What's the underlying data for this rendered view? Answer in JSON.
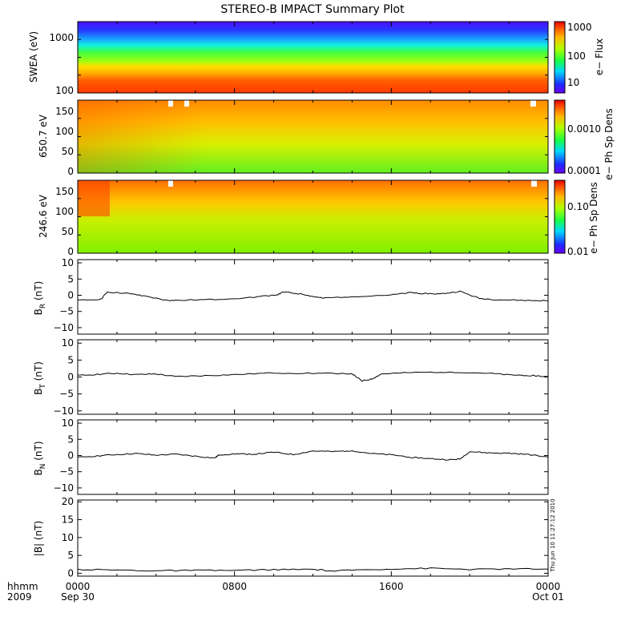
{
  "chart_data": {
    "type": "multi-panel time series",
    "title": "STEREO-B IMPACT Summary Plot",
    "colors": {
      "background": "#ffffff",
      "axis": "#000000",
      "trace": "#000000"
    },
    "x_axis": {
      "tick_labels": [
        "0000",
        "0800",
        "1600",
        "0000"
      ],
      "date_labels": [
        "Sep 30",
        "",
        "",
        "Oct 01"
      ],
      "corner_top": "hhmm",
      "corner_bottom": "2009",
      "range_hours": [
        0,
        24
      ]
    },
    "timestamp": "Thu Jun 10 11:27:12 2010",
    "panels": [
      {
        "id": "swea",
        "type": "heatmap",
        "ylabel": "SWEA (eV)",
        "yscale": "log",
        "ylim": [
          90,
          1800
        ],
        "yticks": [
          "1000",
          "100"
        ],
        "colorbar": {
          "label": "e− Flux",
          "ticks": [
            "1000",
            "100",
            "10"
          ]
        }
      },
      {
        "id": "pad_650",
        "type": "heatmap",
        "ylabel": "650.7 eV",
        "ylim": [
          0,
          180
        ],
        "yticks": [
          "150",
          "100",
          "50",
          "0"
        ],
        "colorbar": {
          "label": "e− Ph Sp Dens",
          "ticks": [
            "0.0010",
            "0.0001"
          ]
        }
      },
      {
        "id": "pad_246",
        "type": "heatmap",
        "ylabel": "246.6 eV",
        "ylim": [
          0,
          180
        ],
        "yticks": [
          "150",
          "100",
          "50",
          "0"
        ],
        "colorbar": {
          "label": "e− Ph Sp Dens",
          "ticks": [
            "0.10",
            "0.01"
          ]
        }
      },
      {
        "id": "br",
        "type": "line",
        "ylabel_main": "B",
        "ylabel_sub": "R",
        "ylabel_unit": " (nT)",
        "ylim": [
          -12,
          11
        ],
        "yticks": [
          "10",
          "5",
          "0",
          "−5",
          "−10"
        ],
        "x": [
          0,
          1.2,
          1.5,
          2.5,
          3.0,
          3.5,
          4.5,
          5.0,
          7.0,
          9.0,
          10.2,
          10.5,
          11.5,
          12.0,
          12.5,
          14.0,
          16.0,
          17.0,
          17.5,
          18.5,
          19.5,
          20.5,
          21.5,
          23.0,
          24.0
        ],
        "values": [
          -1.6,
          -1.2,
          1.0,
          0.6,
          0.2,
          -0.4,
          -1.5,
          -1.6,
          -1.3,
          -0.6,
          0.2,
          1.0,
          0.3,
          -0.4,
          -0.9,
          -0.4,
          0.1,
          0.8,
          0.6,
          0.4,
          1.2,
          -1.0,
          -1.4,
          -1.6,
          -1.7
        ]
      },
      {
        "id": "bt",
        "type": "line",
        "ylabel_main": "B",
        "ylabel_sub": "T",
        "ylabel_unit": " (nT)",
        "ylim": [
          -11,
          11
        ],
        "yticks": [
          "10",
          "5",
          "0",
          "−5",
          "−10"
        ],
        "x": [
          0,
          1.0,
          2.0,
          3.0,
          4.0,
          5.0,
          6.5,
          8.0,
          10.0,
          12.0,
          14.0,
          14.5,
          15.0,
          15.5,
          17.0,
          19.0,
          21.0,
          22.0,
          23.0,
          24.0
        ],
        "values": [
          0.4,
          0.8,
          1.1,
          0.7,
          0.9,
          0.1,
          0.4,
          0.7,
          1.2,
          1.1,
          1.0,
          -1.2,
          -0.6,
          0.9,
          1.3,
          1.5,
          1.1,
          0.6,
          0.5,
          0.1
        ]
      },
      {
        "id": "bn",
        "type": "line",
        "ylabel_main": "B",
        "ylabel_sub": "N",
        "ylabel_unit": " (nT)",
        "ylim": [
          -12,
          11
        ],
        "yticks": [
          "10",
          "5",
          "0",
          "−5",
          "−10"
        ],
        "x": [
          0,
          1.0,
          2.0,
          3.0,
          4.0,
          5.0,
          6.0,
          7.0,
          7.2,
          8.0,
          9.0,
          10.0,
          11.0,
          12.0,
          13.0,
          14.0,
          15.0,
          16.0,
          17.0,
          18.0,
          19.0,
          19.5,
          20.0,
          21.0,
          22.0,
          23.0,
          24.0
        ],
        "values": [
          -0.6,
          -0.1,
          0.3,
          0.6,
          0.1,
          0.4,
          -0.2,
          -0.8,
          0.2,
          0.5,
          0.4,
          1.0,
          0.3,
          1.4,
          1.2,
          1.5,
          0.6,
          0.2,
          -0.5,
          -1.0,
          -1.3,
          -1.1,
          1.2,
          0.8,
          0.7,
          0.3,
          -0.5
        ]
      },
      {
        "id": "bmag",
        "type": "line",
        "ylabel_main": "|B| (nT)",
        "ylim": [
          -0.8,
          20.5
        ],
        "yticks": [
          "20",
          "15",
          "10",
          "5",
          "0"
        ],
        "x": [
          0,
          2.0,
          4.0,
          6.0,
          8.0,
          10.0,
          12.0,
          13.0,
          14.0,
          16.0,
          18.0,
          20.0,
          22.0,
          24.0
        ],
        "values": [
          1.1,
          0.9,
          0.7,
          0.8,
          0.8,
          1.0,
          1.1,
          0.6,
          0.9,
          1.2,
          1.4,
          1.1,
          1.2,
          1.2
        ]
      }
    ]
  }
}
